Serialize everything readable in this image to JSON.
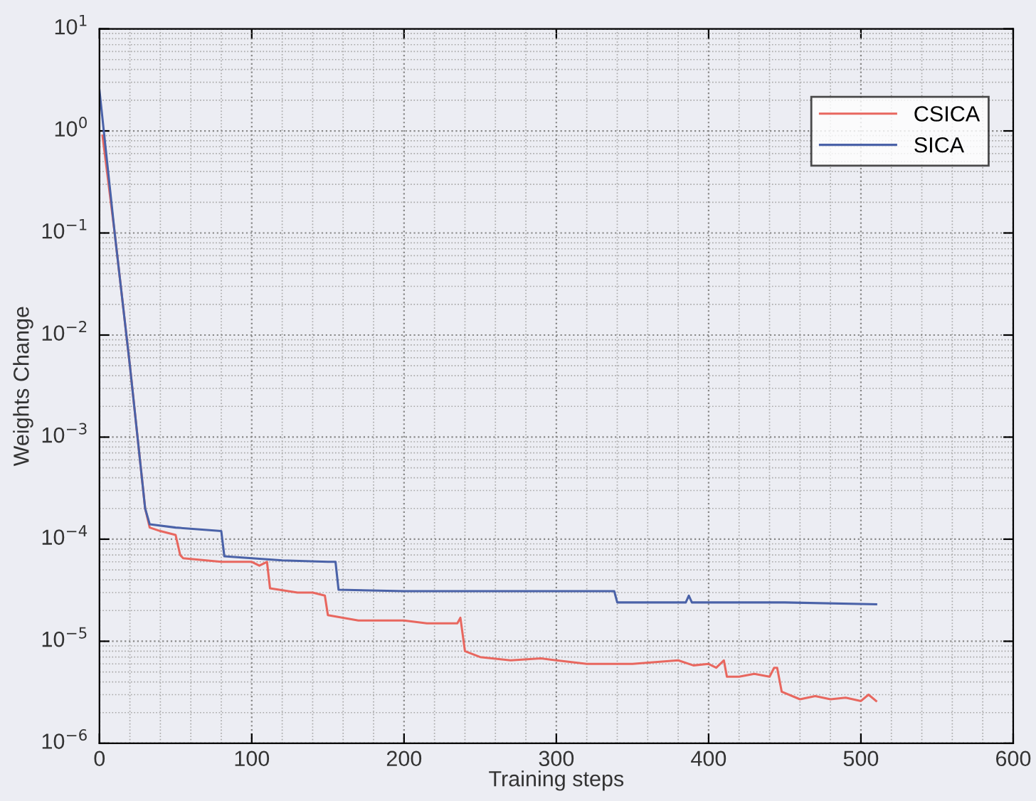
{
  "chart_data": {
    "type": "line",
    "xlabel": "Training steps",
    "ylabel": "Weights Change",
    "log": "y",
    "grid": true,
    "legend": "top right",
    "line_style": "solid",
    "marker": "none",
    "xlim": [
      0,
      600
    ],
    "xticks": [
      0,
      100,
      200,
      300,
      400,
      500,
      600
    ],
    "ylim": [
      1e-06,
      10
    ],
    "yticks": [
      {
        "value": 1e-06,
        "label": "10$^{−6}$"
      },
      {
        "value": 1e-05,
        "label": "10$^{−5}$"
      },
      {
        "value": 0.0001,
        "label": "10$^{−4}$"
      },
      {
        "value": 0.001,
        "label": "10$^{−3}$"
      },
      {
        "value": 0.01,
        "label": "10$^{−2}$"
      },
      {
        "value": 0.1,
        "label": "10$^{−1}$"
      },
      {
        "value": 1,
        "label": "10$^{0}$"
      },
      {
        "value": 10,
        "label": "10$^{1}$"
      }
    ],
    "series": [
      {
        "name": "CSICA",
        "color": "#e8675f",
        "x": [
          2,
          10,
          20,
          30,
          33,
          40,
          50,
          53,
          55,
          80,
          100,
          105,
          110,
          112,
          130,
          140,
          148,
          150,
          170,
          200,
          215,
          235,
          237,
          240,
          250,
          270,
          290,
          300,
          320,
          350,
          380,
          390,
          400,
          405,
          410,
          412,
          420,
          430,
          440,
          443,
          445,
          448,
          460,
          470,
          480,
          490,
          500,
          505,
          510
        ],
        "values": [
          0.9,
          0.1,
          0.005,
          0.0002,
          0.00013,
          0.00012,
          0.00011,
          7e-05,
          6.5e-05,
          6e-05,
          6e-05,
          5.5e-05,
          6e-05,
          3.3e-05,
          3e-05,
          3e-05,
          2.8e-05,
          1.8e-05,
          1.6e-05,
          1.6e-05,
          1.5e-05,
          1.5e-05,
          1.7e-05,
          8e-06,
          7e-06,
          6.5e-06,
          6.8e-06,
          6.5e-06,
          6e-06,
          6e-06,
          6.5e-06,
          5.8e-06,
          6e-06,
          5.5e-06,
          6.5e-06,
          4.5e-06,
          4.5e-06,
          4.8e-06,
          4.5e-06,
          5.5e-06,
          5.5e-06,
          3.2e-06,
          2.7e-06,
          2.9e-06,
          2.7e-06,
          2.8e-06,
          2.6e-06,
          3e-06,
          2.6e-06
        ]
      },
      {
        "name": "SICA",
        "color": "#4a62a8",
        "x": [
          0,
          10,
          20,
          30,
          33,
          50,
          80,
          82,
          120,
          150,
          155,
          157,
          200,
          300,
          338,
          340,
          385,
          387,
          389,
          450,
          510
        ],
        "values": [
          2.5,
          0.1,
          0.005,
          0.0002,
          0.00014,
          0.00013,
          0.00012,
          6.8e-05,
          6.2e-05,
          6e-05,
          6e-05,
          3.2e-05,
          3.1e-05,
          3.1e-05,
          3.1e-05,
          2.4e-05,
          2.4e-05,
          2.8e-05,
          2.4e-05,
          2.4e-05,
          2.3e-05
        ]
      }
    ]
  }
}
